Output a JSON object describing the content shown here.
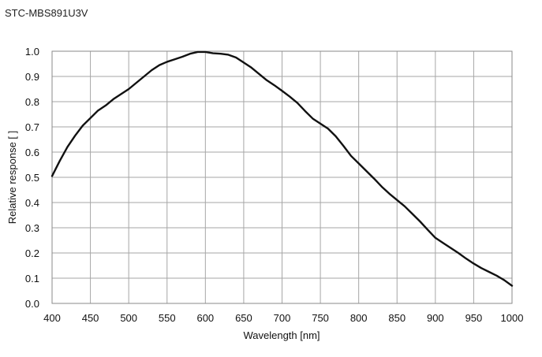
{
  "chart_data": {
    "type": "line",
    "title": "STC-MBS891U3V",
    "xlabel": "Wavelength [nm]",
    "ylabel": "Relative response [ ]",
    "xlim": [
      400,
      1000
    ],
    "ylim": [
      0,
      1
    ],
    "xticks": [
      "400",
      "450",
      "500",
      "550",
      "600",
      "650",
      "700",
      "750",
      "800",
      "850",
      "900",
      "950",
      "1000"
    ],
    "yticks": [
      "0.0",
      "0.1",
      "0.2",
      "0.3",
      "0.4",
      "0.5",
      "0.6",
      "0.7",
      "0.8",
      "0.9",
      "1.0"
    ],
    "grid": true,
    "series": [
      {
        "x": [
          400,
          410,
          420,
          430,
          440,
          450,
          460,
          470,
          480,
          490,
          500,
          510,
          520,
          530,
          540,
          550,
          560,
          570,
          580,
          590,
          600,
          610,
          620,
          630,
          640,
          650,
          660,
          670,
          680,
          690,
          700,
          710,
          720,
          730,
          740,
          750,
          760,
          770,
          780,
          790,
          800,
          810,
          820,
          830,
          840,
          850,
          860,
          870,
          880,
          890,
          900,
          910,
          920,
          930,
          940,
          950,
          960,
          970,
          980,
          990,
          1000
        ],
        "y": [
          0.505,
          0.565,
          0.62,
          0.665,
          0.705,
          0.735,
          0.765,
          0.785,
          0.81,
          0.83,
          0.85,
          0.875,
          0.9,
          0.925,
          0.945,
          0.958,
          0.968,
          0.978,
          0.99,
          0.997,
          0.997,
          0.992,
          0.99,
          0.986,
          0.975,
          0.955,
          0.935,
          0.91,
          0.885,
          0.865,
          0.843,
          0.82,
          0.795,
          0.763,
          0.733,
          0.713,
          0.693,
          0.663,
          0.625,
          0.585,
          0.555,
          0.525,
          0.495,
          0.463,
          0.435,
          0.41,
          0.385,
          0.355,
          0.325,
          0.292,
          0.26,
          0.24,
          0.22,
          0.2,
          0.178,
          0.158,
          0.14,
          0.125,
          0.11,
          0.092,
          0.07
        ]
      }
    ]
  }
}
